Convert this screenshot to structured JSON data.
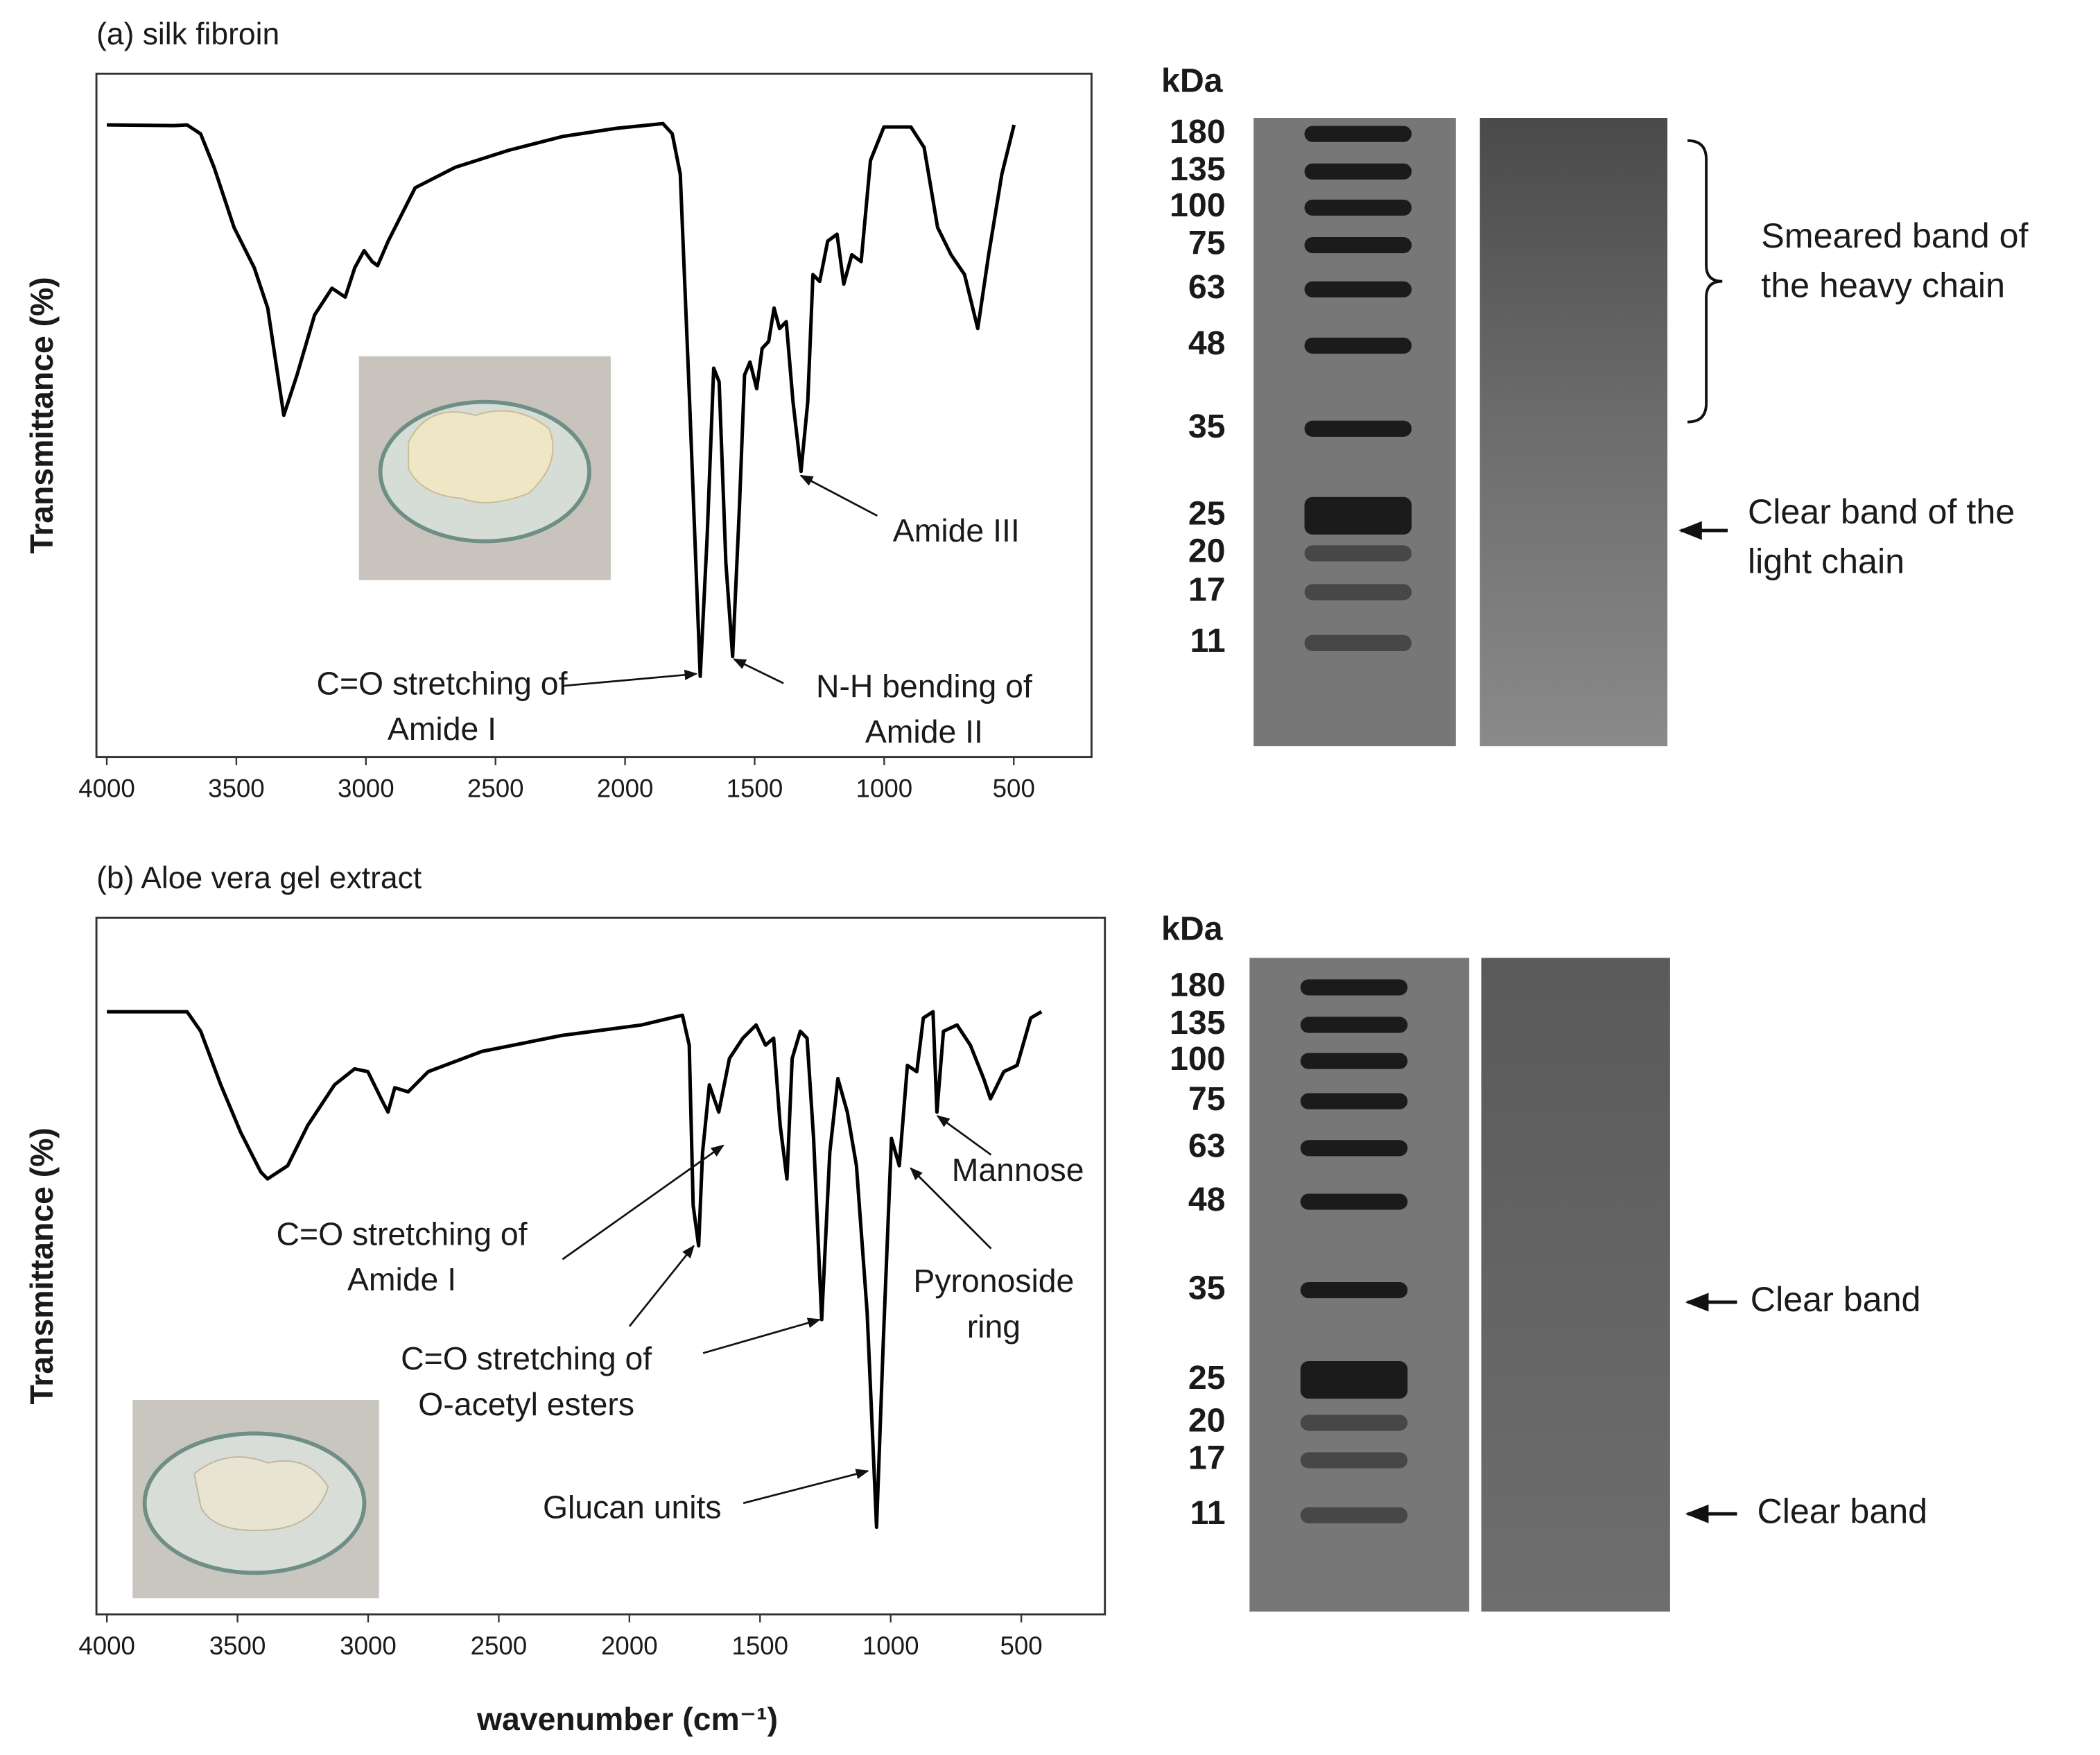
{
  "chart_data": [
    {
      "type": "line",
      "title": "(a) silk fibroin",
      "ylabel": "Transmittance (%)",
      "xlim": [
        4040,
        200
      ],
      "xticks": [
        4000,
        3500,
        3000,
        2500,
        2000,
        1500,
        1000,
        500
      ],
      "ylim": [
        0,
        100
      ],
      "x": [
        4000,
        3741,
        3690,
        3638,
        3586,
        3509,
        3431,
        3379,
        3317,
        3266,
        3198,
        3131,
        3080,
        3043,
        3007,
        2976,
        2955,
        2914,
        2810,
        2655,
        2448,
        2242,
        2035,
        1854,
        1818,
        1787,
        1751,
        1710,
        1683,
        1658,
        1637,
        1611,
        1585,
        1559,
        1539,
        1518,
        1492,
        1471,
        1446,
        1425,
        1404,
        1378,
        1352,
        1321,
        1295,
        1275,
        1249,
        1218,
        1182,
        1156,
        1125,
        1089,
        1053,
        1001,
        897,
        846,
        794,
        742,
        690,
        639,
        597,
        546,
        499
      ],
      "series": [
        {
          "color": "#000000",
          "values": [
            92.5,
            92.4,
            92.5,
            91.2,
            86.3,
            77.5,
            71.6,
            65.7,
            50,
            55.9,
            64.7,
            68.6,
            67.3,
            71.6,
            74.1,
            72.5,
            71.9,
            75.5,
            83.3,
            86.3,
            88.8,
            90.8,
            92,
            92.7,
            91.2,
            85.3,
            52,
            11.8,
            32.4,
            56.9,
            54.9,
            28.4,
            14.7,
            36.3,
            55.9,
            57.8,
            53.9,
            59.8,
            60.8,
            65.7,
            62.7,
            63.7,
            52,
            41.8,
            52,
            70.6,
            69.6,
            75.5,
            76.5,
            69.2,
            73.5,
            72.5,
            87.3,
            92.2,
            92.2,
            89.2,
            77.5,
            73.5,
            70.6,
            62.7,
            73.5,
            85.3,
            92.5
          ]
        }
      ],
      "annotations": [
        {
          "lines": [
            "C=O stretching of",
            "Amide I"
          ]
        },
        {
          "lines": [
            "N-H bending of",
            "Amide II"
          ]
        },
        {
          "lines": [
            "Amide III"
          ]
        }
      ]
    },
    {
      "type": "line",
      "title": "(b) Aloe vera gel extract",
      "ylabel": "Transmittance (%)",
      "xlabel": "wavenumber (cm⁻¹)",
      "xlim": [
        4040,
        180
      ],
      "xticks": [
        4000,
        3500,
        3000,
        2500,
        2000,
        1500,
        1000,
        500
      ],
      "ylim": [
        0,
        100
      ],
      "x": [
        4000,
        3693,
        3641,
        3564,
        3488,
        3411,
        3385,
        3308,
        3231,
        3129,
        3052,
        3001,
        2950,
        2924,
        2898,
        2847,
        2770,
        2565,
        2258,
        1954,
        1797,
        1771,
        1756,
        1735,
        1720,
        1694,
        1658,
        1617,
        1566,
        1515,
        1479,
        1448,
        1423,
        1397,
        1377,
        1346,
        1320,
        1295,
        1264,
        1233,
        1202,
        1166,
        1131,
        1090,
        1054,
        1028,
        997,
        967,
        936,
        900,
        875,
        838,
        823,
        798,
        746,
        695,
        644,
        618,
        567,
        516,
        464,
        423
      ],
      "series": [
        {
          "color": "#000000",
          "values": [
            86.5,
            86.5,
            83.7,
            76,
            69.2,
            63.5,
            62.5,
            64.4,
            70.2,
            76,
            78.3,
            77.9,
            74,
            72.1,
            75.6,
            75,
            77.9,
            80.8,
            83.1,
            84.6,
            86,
            81.7,
            58.7,
            52.9,
            66.3,
            76,
            72.1,
            79.8,
            82.7,
            84.6,
            81.7,
            82.7,
            70.2,
            62.5,
            79.8,
            83.7,
            82.7,
            68.3,
            42.3,
            66.3,
            76.9,
            72.1,
            64.4,
            43.3,
            12.5,
            39.4,
            68.3,
            64.4,
            78.8,
            77.9,
            85.6,
            86.5,
            72.1,
            83.7,
            84.6,
            81.7,
            76.9,
            74,
            77.9,
            78.8,
            85.6,
            86.5
          ]
        }
      ],
      "annotations": [
        {
          "lines": [
            "C=O stretching of",
            "Amide I"
          ]
        },
        {
          "lines": [
            "C=O stretching  of",
            "O-acetyl esters"
          ]
        },
        {
          "lines": [
            "Glucan units"
          ]
        },
        {
          "lines": [
            "Pyronoside",
            "ring"
          ]
        },
        {
          "lines": [
            "Mannose"
          ]
        }
      ]
    }
  ],
  "gels": [
    {
      "unit": "kDa",
      "ladder": [
        180,
        135,
        100,
        75,
        63,
        48,
        35,
        25,
        20,
        17,
        11
      ],
      "notes": [
        {
          "lines": [
            "Smeared band of",
            "the heavy chain"
          ]
        },
        {
          "lines": [
            "Clear band of the",
            "light chain"
          ]
        }
      ]
    },
    {
      "unit": "kDa",
      "ladder": [
        180,
        135,
        100,
        75,
        63,
        48,
        35,
        25,
        20,
        17,
        11
      ],
      "notes": [
        {
          "lines": [
            "Clear band"
          ]
        },
        {
          "lines": [
            "Clear band"
          ]
        }
      ]
    }
  ]
}
